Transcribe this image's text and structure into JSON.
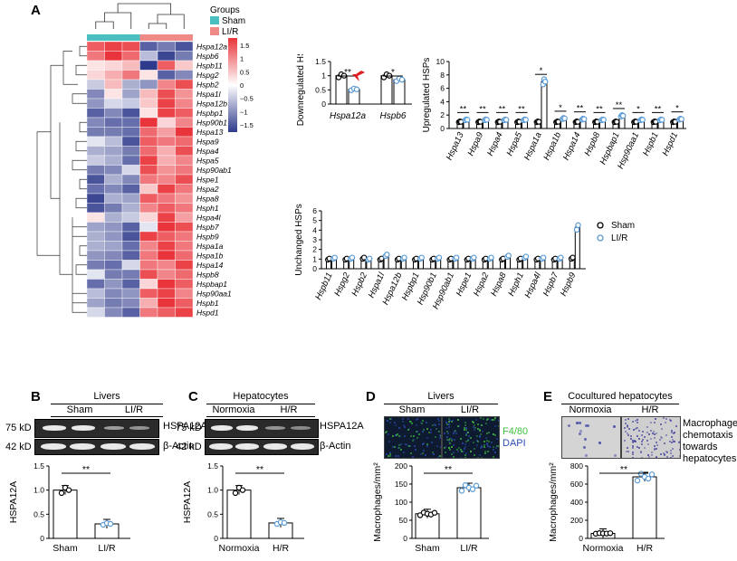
{
  "panels": {
    "A": "A",
    "B": "B",
    "C": "C",
    "D": "D",
    "E": "E"
  },
  "heatmap": {
    "legend_title": "Groups",
    "legend_groups": [
      {
        "label": "Sham",
        "color": "#4bbfc0"
      },
      {
        "label": "LI/R",
        "color": "#f08a86"
      }
    ],
    "color_scale": {
      "ticks": [
        "1.5",
        "1",
        "0.5",
        "0",
        "−0.5",
        "−1",
        "−1.5"
      ],
      "high": "#e8343a",
      "mid": "#ffffff",
      "low": "#2e3a8c"
    },
    "genes": [
      "Hspa12a",
      "Hspb6",
      "Hspb11",
      "Hspg2",
      "Hspb2",
      "Hspa1l",
      "Hspa12b",
      "Hspbp1",
      "Hsp90b1",
      "Hspa13",
      "Hspa9",
      "Hspa4",
      "Hspa5",
      "Hsp90ab1",
      "Hspe1",
      "Hspa2",
      "Hspa8",
      "Hsph1",
      "Hspa4l",
      "Hspb7",
      "Hspb9",
      "Hspa1a",
      "Hspa1b",
      "Hspa14",
      "Hspb8",
      "Hspbap1",
      "Hsp90aa1",
      "Hspb1",
      "Hspd1"
    ],
    "values": [
      [
        1.2,
        1.4,
        1.3,
        -1.2,
        -1.0,
        -1.3
      ],
      [
        1.0,
        1.5,
        1.1,
        -0.5,
        -1.4,
        -1.0
      ],
      [
        0.2,
        0.3,
        0.5,
        -1.5,
        1.2,
        0.4
      ],
      [
        0.3,
        0.6,
        1.0,
        0.2,
        -1.2,
        -0.9
      ],
      [
        -0.4,
        0.5,
        -0.6,
        -0.8,
        0.9,
        1.3
      ],
      [
        -0.9,
        0.2,
        -0.7,
        0.5,
        1.3,
        0.8
      ],
      [
        -0.8,
        -0.3,
        -0.4,
        0.4,
        1.4,
        0.9
      ],
      [
        -1.2,
        -0.9,
        -1.3,
        0.2,
        1.4,
        1.2
      ],
      [
        -0.9,
        -1.1,
        -1.1,
        1.5,
        0.3,
        0.9
      ],
      [
        -1.0,
        -1.0,
        -1.1,
        1.1,
        0.7,
        1.5
      ],
      [
        -0.2,
        -0.5,
        -1.3,
        1.2,
        1.0,
        1.1
      ],
      [
        -0.6,
        -0.7,
        -1.0,
        1.1,
        0.6,
        1.3
      ],
      [
        -0.4,
        -0.6,
        -1.1,
        1.4,
        0.6,
        0.9
      ],
      [
        -1.0,
        -0.9,
        -0.3,
        1.3,
        0.8,
        1.0
      ],
      [
        -1.3,
        -0.6,
        -0.9,
        1.0,
        0.9,
        1.3
      ],
      [
        -1.1,
        -0.9,
        -1.2,
        0.4,
        1.4,
        1.0
      ],
      [
        -1.4,
        -0.6,
        -0.7,
        1.2,
        1.0,
        0.8
      ],
      [
        -1.3,
        -1.0,
        -0.6,
        0.9,
        1.2,
        1.0
      ],
      [
        0.2,
        -0.6,
        -0.4,
        0.3,
        1.4,
        0.7
      ],
      [
        -0.7,
        -0.8,
        -1.2,
        -0.2,
        1.5,
        1.3
      ],
      [
        -0.6,
        -0.8,
        -1.3,
        1.4,
        1.2,
        1.0
      ],
      [
        -0.6,
        -0.7,
        -1.1,
        0.9,
        1.4,
        1.0
      ],
      [
        -0.8,
        -0.9,
        -1.2,
        1.0,
        1.5,
        1.1
      ],
      [
        -1.0,
        -1.1,
        -0.3,
        1.0,
        0.9,
        1.4
      ],
      [
        -0.2,
        -1.0,
        -1.0,
        1.3,
        0.9,
        1.1
      ],
      [
        -1.1,
        -0.8,
        -1.2,
        0.3,
        1.5,
        1.2
      ],
      [
        -0.5,
        -0.9,
        -0.8,
        1.2,
        1.4,
        0.9
      ],
      [
        -0.7,
        -1.0,
        -0.9,
        0.6,
        1.5,
        1.2
      ],
      [
        -0.3,
        -0.9,
        -1.2,
        1.0,
        1.2,
        1.4
      ]
    ]
  },
  "chart_data": [
    {
      "id": "downregulated",
      "type": "bar",
      "ylabel": "Downregulated HSPs",
      "ylim": [
        0,
        1.5
      ],
      "yticks": [
        "0",
        "0.5",
        "1",
        "1.5"
      ],
      "categories": [
        "Hspa12a",
        "Hspb6"
      ],
      "series": [
        {
          "name": "Sham",
          "values": [
            1.0,
            1.0
          ]
        },
        {
          "name": "LI/R",
          "values": [
            0.52,
            0.86
          ]
        }
      ],
      "significance": [
        "**",
        "*"
      ]
    },
    {
      "id": "upregulated",
      "type": "bar",
      "ylabel": "Upregulated HSPs",
      "ylim": [
        0,
        10
      ],
      "yticks": [
        "0",
        "2",
        "4",
        "6",
        "8",
        "10"
      ],
      "categories": [
        "Hspa13",
        "Hspa9",
        "Hspa4",
        "Hspa5",
        "Hspa1a",
        "Hspa1b",
        "Hspa14",
        "Hspb8",
        "Hspbap1",
        "Hsp90aa1",
        "Hspb1",
        "Hspd1"
      ],
      "series": [
        {
          "name": "Sham",
          "values": [
            1,
            1,
            1,
            1,
            1,
            1,
            1,
            1,
            1,
            1,
            1,
            1
          ]
        },
        {
          "name": "LI/R",
          "values": [
            1.3,
            1.3,
            1.3,
            1.3,
            7.0,
            1.5,
            1.4,
            1.3,
            1.9,
            1.3,
            1.3,
            1.4
          ]
        }
      ],
      "significance": [
        "**",
        "**",
        "**",
        "**",
        "*",
        "*",
        "**",
        "**",
        "**",
        "*",
        "**",
        "*"
      ]
    },
    {
      "id": "unchanged",
      "type": "bar",
      "ylabel": "Unchanged HSPs",
      "ylim": [
        0,
        6
      ],
      "yticks": [
        "0",
        "1",
        "2",
        "3",
        "4",
        "5",
        "6"
      ],
      "categories": [
        "Hspb11",
        "Hspg2",
        "Hspb2",
        "Hspa1l",
        "Hspa12b",
        "Hspbp1",
        "Hsp90b1",
        "Hsp90ab1",
        "Hspe1",
        "Hspa2",
        "Hspa8",
        "Hsph1",
        "Hspa4l",
        "Hspb7",
        "Hspb9"
      ],
      "series": [
        {
          "name": "Sham",
          "values": [
            1,
            1,
            1.1,
            1,
            1,
            1,
            1,
            1,
            1,
            1,
            1,
            1,
            1,
            1,
            1.1
          ]
        },
        {
          "name": "LI/R",
          "values": [
            1.1,
            1.1,
            1.0,
            1.4,
            1.1,
            1.1,
            1.1,
            1.1,
            1.1,
            1.1,
            1.3,
            1.2,
            1.1,
            1.1,
            4.3
          ]
        }
      ],
      "legend": [
        "Sham",
        "LI/R"
      ]
    },
    {
      "id": "B_quant",
      "type": "bar",
      "ylabel": "HSPA12A",
      "ylim": [
        0,
        1.5
      ],
      "yticks": [
        "0",
        "0.5",
        "1.0",
        "1.5"
      ],
      "categories": [
        "Sham",
        "LI/R"
      ],
      "values": [
        1.0,
        0.3
      ],
      "significance": "**"
    },
    {
      "id": "C_quant",
      "type": "bar",
      "ylabel": "HSPA12A",
      "ylim": [
        0,
        1.5
      ],
      "yticks": [
        "0",
        "0.5",
        "1.0",
        "1.5"
      ],
      "categories": [
        "Normoxia",
        "H/R"
      ],
      "values": [
        1.0,
        0.32
      ],
      "significance": "**"
    },
    {
      "id": "D_quant",
      "type": "bar",
      "ylabel": "Macrophages/mm²",
      "ylim": [
        0,
        200
      ],
      "yticks": [
        "0",
        "50",
        "100",
        "150",
        "200"
      ],
      "categories": [
        "Sham",
        "LI/R"
      ],
      "values": [
        68,
        140
      ],
      "significance": "**"
    },
    {
      "id": "E_quant",
      "type": "bar",
      "ylabel": "Macrophages/mm²",
      "ylim": [
        0,
        800
      ],
      "yticks": [
        "0",
        "200",
        "400",
        "600",
        "800"
      ],
      "categories": [
        "Normoxia",
        "H/R"
      ],
      "values": [
        55,
        680
      ],
      "significance": "**"
    }
  ],
  "blotB": {
    "title": "Livers",
    "groups": [
      "Sham",
      "LI/R"
    ],
    "mw1": "75 kD",
    "mw2": "42 kD",
    "prot1": "HSPA12A",
    "prot2": "β-Actin"
  },
  "blotC": {
    "title": "Hepatocytes",
    "groups": [
      "Normoxia",
      "H/R"
    ],
    "mw1": "75 kD",
    "mw2": "42 kD",
    "prot1": "HSPA12A",
    "prot2": "β-Actin"
  },
  "panelD": {
    "title": "Livers",
    "groups": [
      "Sham",
      "LI/R"
    ],
    "stain1": "F4/80",
    "stain2": "DAPI",
    "stain1_color": "#3fbf3f",
    "stain2_color": "#2c4fb8"
  },
  "panelE": {
    "title": "Cocultured hepatocytes",
    "groups": [
      "Normoxia",
      "H/R"
    ],
    "caption": [
      "Macrophage",
      "chemotaxis",
      "towards",
      "hepatocytes"
    ]
  },
  "colors": {
    "sham_marker": "#000000",
    "lir_marker": "#5b9bd5",
    "heat_high": "#e8343a",
    "heat_low": "#2e3a8c"
  }
}
